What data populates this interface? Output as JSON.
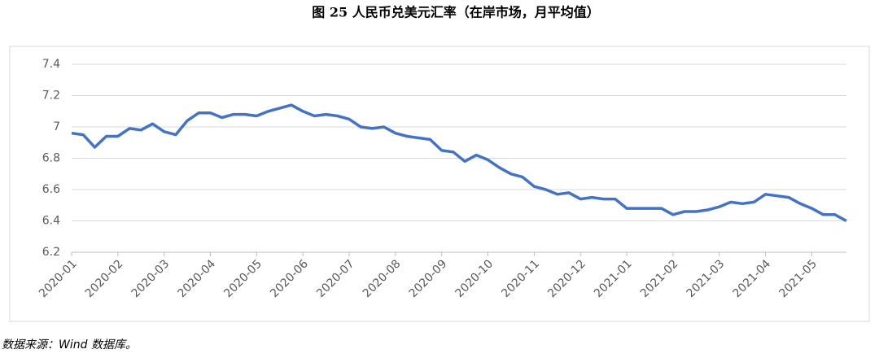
{
  "chart_data": {
    "type": "line",
    "title": "图 25  人民币兑美元汇率（在岸市场，月平均值）",
    "source": "数据来源：Wind 数据库。",
    "categories": [
      "2020-01",
      null,
      null,
      null,
      "2020-02",
      null,
      null,
      null,
      "2020-03",
      null,
      null,
      null,
      "2020-04",
      null,
      null,
      null,
      "2020-05",
      null,
      null,
      null,
      "2020-06",
      null,
      null,
      null,
      "2020-07",
      null,
      null,
      null,
      "2020-08",
      null,
      null,
      null,
      "2020-09",
      null,
      null,
      null,
      "2020-10",
      null,
      null,
      null,
      "2020-11",
      null,
      null,
      null,
      "2020-12",
      null,
      null,
      null,
      "2021-01",
      null,
      null,
      null,
      "2021-02",
      null,
      null,
      null,
      "2021-03",
      null,
      null,
      null,
      "2021-04",
      null,
      null,
      null,
      "2021-05",
      null,
      null,
      null
    ],
    "series": [
      {
        "color": "#4472c4",
        "values": [
          6.96,
          6.95,
          6.87,
          6.94,
          6.94,
          6.99,
          6.98,
          7.02,
          6.97,
          6.95,
          7.04,
          7.09,
          7.09,
          7.06,
          7.08,
          7.08,
          7.07,
          7.1,
          7.12,
          7.14,
          7.1,
          7.07,
          7.08,
          7.07,
          7.05,
          7.0,
          6.99,
          7.0,
          6.96,
          6.94,
          6.93,
          6.92,
          6.85,
          6.84,
          6.78,
          6.82,
          6.79,
          6.74,
          6.7,
          6.68,
          6.62,
          6.6,
          6.57,
          6.58,
          6.54,
          6.55,
          6.54,
          6.54,
          6.48,
          6.48,
          6.48,
          6.48,
          6.44,
          6.46,
          6.46,
          6.47,
          6.49,
          6.52,
          6.51,
          6.52,
          6.57,
          6.56,
          6.55,
          6.51,
          6.48,
          6.44,
          6.44,
          6.4
        ]
      }
    ],
    "ylim": [
      6.2,
      7.4
    ],
    "yticks": [
      6.2,
      6.4,
      6.6,
      6.8,
      7,
      7.2,
      7.4
    ],
    "grid": true
  }
}
